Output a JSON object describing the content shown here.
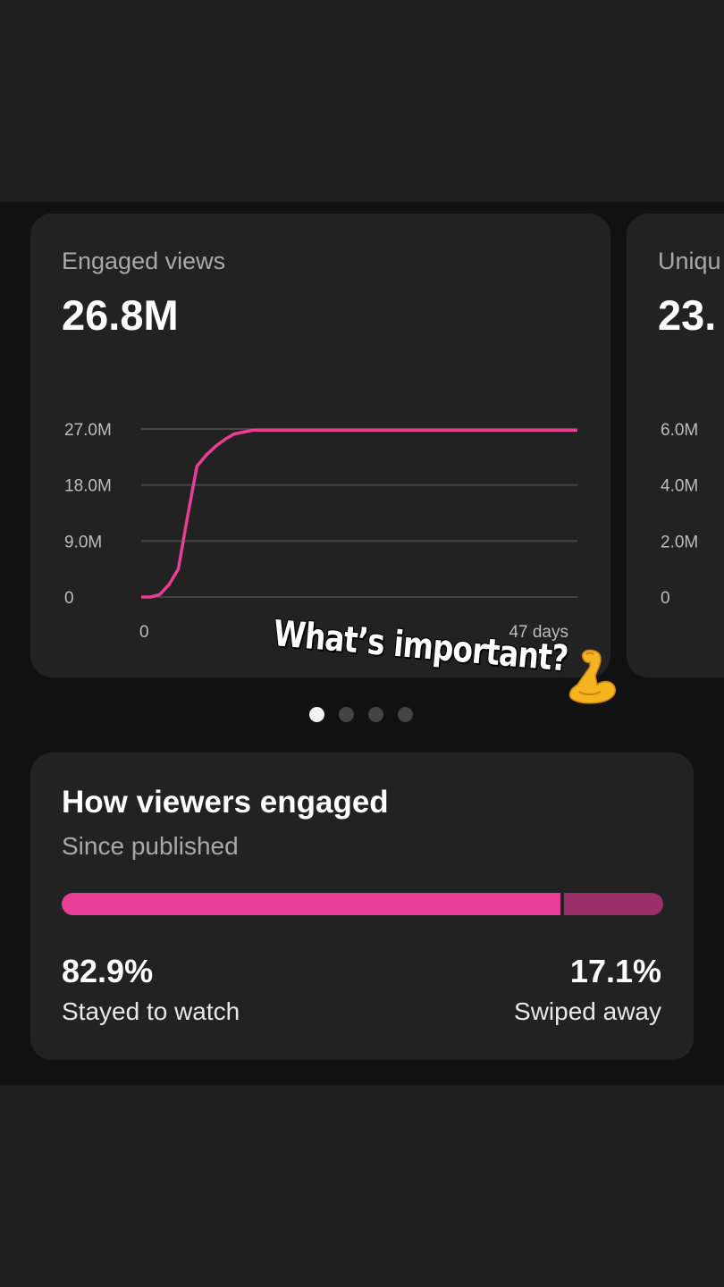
{
  "engaged_views": {
    "title": "Engaged views",
    "value": "26.8M",
    "chart_data": {
      "type": "line",
      "x": [
        0,
        1,
        2,
        3,
        4,
        5,
        6,
        7,
        8,
        9,
        10,
        12,
        14,
        47
      ],
      "y": [
        0,
        0,
        0.4,
        2.0,
        4.5,
        13,
        21,
        22.8,
        24.2,
        25.3,
        26.2,
        26.8,
        26.8,
        26.8
      ],
      "y_ticks": [
        "27.0M",
        "18.0M",
        "9.0M",
        "0"
      ],
      "x_ticks": [
        "0",
        "47 days"
      ],
      "ylim": [
        0,
        27
      ],
      "xlim": [
        0,
        47
      ],
      "grid": true,
      "color": "#e83e96"
    }
  },
  "unique_viewers_peek": {
    "title": "Uniqu",
    "value": "23.",
    "y_ticks": [
      "6.0M",
      "4.0M",
      "2.0M",
      "0"
    ]
  },
  "carousel": {
    "pages": 4,
    "active_index": 0
  },
  "sticker": {
    "text": "What’s important?",
    "emoji_name": "flexed-biceps-icon"
  },
  "how_viewers_engaged": {
    "title": "How viewers engaged",
    "subtitle": "Since published",
    "stayed_fraction": 0.829,
    "stayed_pct": "82.9%",
    "stayed_label": "Stayed to watch",
    "swiped_pct": "17.1%",
    "swiped_label": "Swiped away",
    "colors": {
      "stayed": "#e83e96",
      "swiped": "#9a2f6a"
    }
  }
}
